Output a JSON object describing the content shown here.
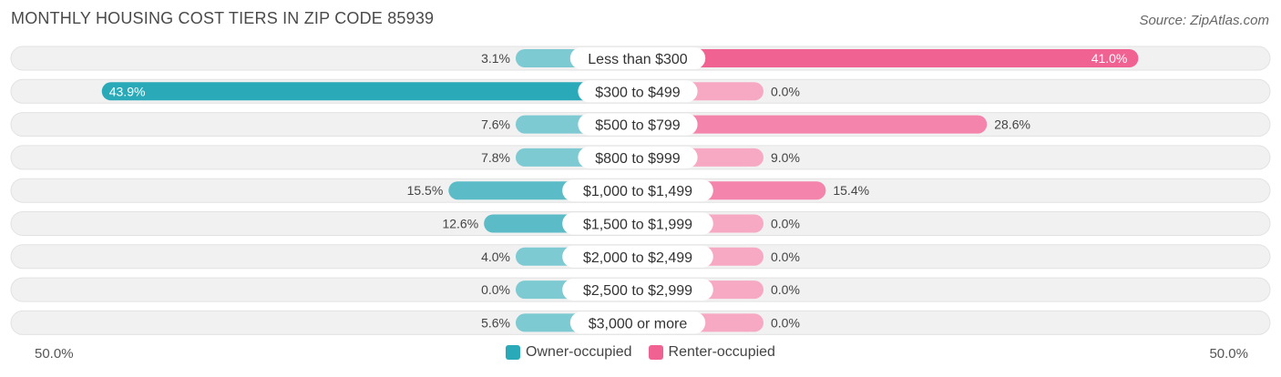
{
  "title": "MONTHLY HOUSING COST TIERS IN ZIP CODE 85939",
  "source": "Source: ZipAtlas.com",
  "axis": {
    "left_label": "50.0%",
    "right_label": "50.0%"
  },
  "legend": [
    {
      "label": "Owner-occupied",
      "color": "#2aaab8"
    },
    {
      "label": "Renter-occupied",
      "color": "#f06292"
    }
  ],
  "chart_data": {
    "type": "bar",
    "orientation": "diverging-horizontal",
    "xlim": [
      -50,
      50
    ],
    "categories": [
      "Less than $300",
      "$300 to $499",
      "$500 to $799",
      "$800 to $999",
      "$1,000 to $1,499",
      "$1,500 to $1,999",
      "$2,000 to $2,499",
      "$2,500 to $2,999",
      "$3,000 or more"
    ],
    "series": [
      {
        "name": "Owner-occupied",
        "values": [
          3.1,
          43.9,
          7.6,
          7.8,
          15.5,
          12.6,
          4.0,
          0.0,
          5.6
        ],
        "labels": [
          "3.1%",
          "43.9%",
          "7.6%",
          "7.8%",
          "15.5%",
          "12.6%",
          "4.0%",
          "0.0%",
          "5.6%"
        ]
      },
      {
        "name": "Renter-occupied",
        "values": [
          41.0,
          0.0,
          28.6,
          9.0,
          15.4,
          0.0,
          0.0,
          0.0,
          0.0
        ],
        "labels": [
          "41.0%",
          "0.0%",
          "28.6%",
          "9.0%",
          "15.4%",
          "0.0%",
          "0.0%",
          "0.0%",
          "0.0%"
        ]
      }
    ],
    "colors": {
      "owner": "#2aaab8",
      "owner_light": "#7dcad3",
      "renter": "#f06292",
      "renter_light": "#f7a9c4",
      "track": "#f0f0f0"
    }
  }
}
